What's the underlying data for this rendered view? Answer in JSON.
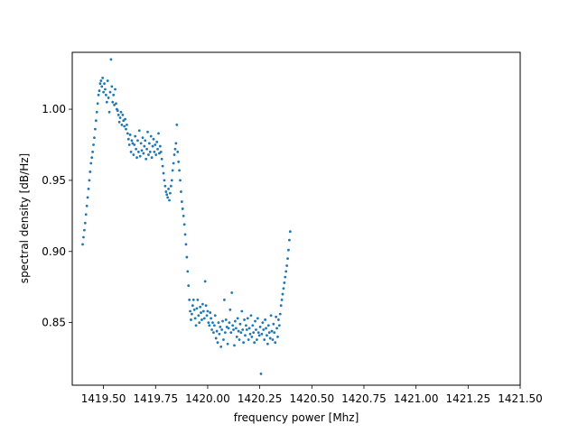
{
  "chart_data": {
    "type": "scatter",
    "xlabel": "frequency power [Mhz]",
    "ylabel": "spectral density [dB/Hz]",
    "xlim": [
      1419.35,
      1421.5
    ],
    "ylim": [
      0.806,
      1.04
    ],
    "xticks": [
      1419.5,
      1419.75,
      1420.0,
      1420.25,
      1420.5,
      1420.75,
      1421.0,
      1421.25,
      1421.5
    ],
    "xtick_labels": [
      "1419.50",
      "1419.75",
      "1420.00",
      "1420.25",
      "1420.50",
      "1420.75",
      "1421.00",
      "1421.25",
      "1421.50"
    ],
    "yticks": [
      0.85,
      0.9,
      0.95,
      1.0
    ],
    "ytick_labels": [
      "0.85",
      "0.90",
      "0.95",
      "1.00"
    ],
    "grid": false,
    "marker_color": "#1f77b4",
    "x_start": 1419.4,
    "x_step": 0.004,
    "y": [
      0.905,
      0.91,
      0.915,
      0.92,
      0.926,
      0.932,
      0.938,
      0.944,
      0.95,
      0.956,
      0.962,
      0.966,
      0.97,
      0.975,
      0.98,
      0.986,
      0.992,
      0.998,
      1.004,
      1.01,
      1.013,
      1.018,
      1.02,
      1.016,
      1.022,
      1.012,
      1.018,
      1.014,
      1.01,
      1.005,
      1.02,
      1.008,
      0.998,
      1.012,
      1.035,
      1.016,
      1.005,
      1.01,
      1.003,
      1.014,
      1.004,
      1.0,
      0.999,
      0.996,
      0.991,
      0.994,
      0.998,
      0.989,
      0.996,
      0.992,
      0.988,
      0.993,
      0.986,
      0.989,
      0.983,
      0.979,
      0.975,
      0.982,
      0.97,
      0.978,
      0.976,
      0.968,
      0.975,
      0.981,
      0.972,
      0.966,
      0.978,
      0.97,
      0.985,
      0.967,
      0.976,
      0.971,
      0.98,
      0.969,
      0.974,
      0.978,
      0.965,
      0.972,
      0.984,
      0.968,
      0.976,
      0.97,
      0.981,
      0.966,
      0.974,
      0.979,
      0.97,
      0.975,
      0.968,
      0.977,
      0.972,
      0.983,
      0.969,
      0.974,
      0.97,
      0.965,
      0.96,
      0.955,
      0.95,
      0.946,
      0.942,
      0.94,
      0.938,
      0.944,
      0.936,
      0.941,
      0.946,
      0.95,
      0.957,
      0.962,
      0.968,
      0.972,
      0.976,
      0.989,
      0.97,
      0.963,
      0.957,
      0.95,
      0.942,
      0.935,
      0.93,
      0.925,
      0.919,
      0.912,
      0.905,
      0.896,
      0.886,
      0.876,
      0.866,
      0.858,
      0.852,
      0.856,
      0.862,
      0.866,
      0.859,
      0.853,
      0.848,
      0.86,
      0.866,
      0.855,
      0.85,
      0.861,
      0.857,
      0.852,
      0.863,
      0.858,
      0.853,
      0.879,
      0.862,
      0.855,
      0.858,
      0.85,
      0.848,
      0.857,
      0.853,
      0.845,
      0.85,
      0.843,
      0.848,
      0.855,
      0.839,
      0.844,
      0.836,
      0.85,
      0.842,
      0.847,
      0.833,
      0.845,
      0.851,
      0.838,
      0.866,
      0.843,
      0.852,
      0.847,
      0.835,
      0.846,
      0.85,
      0.859,
      0.843,
      0.871,
      0.848,
      0.845,
      0.834,
      0.851,
      0.846,
      0.84,
      0.853,
      0.844,
      0.838,
      0.849,
      0.843,
      0.858,
      0.845,
      0.836,
      0.852,
      0.841,
      0.848,
      0.845,
      0.853,
      0.838,
      0.846,
      0.842,
      0.855,
      0.84,
      0.848,
      0.843,
      0.836,
      0.851,
      0.845,
      0.838,
      0.853,
      0.843,
      0.841,
      0.847,
      0.814,
      0.842,
      0.85,
      0.845,
      0.838,
      0.852,
      0.846,
      0.841,
      0.835,
      0.848,
      0.843,
      0.839,
      0.855,
      0.844,
      0.838,
      0.849,
      0.843,
      0.836,
      0.854,
      0.846,
      0.84,
      0.852,
      0.848,
      0.856,
      0.862,
      0.866,
      0.87,
      0.874,
      0.878,
      0.882,
      0.886,
      0.89,
      0.895,
      0.901,
      0.908,
      0.914
    ]
  }
}
